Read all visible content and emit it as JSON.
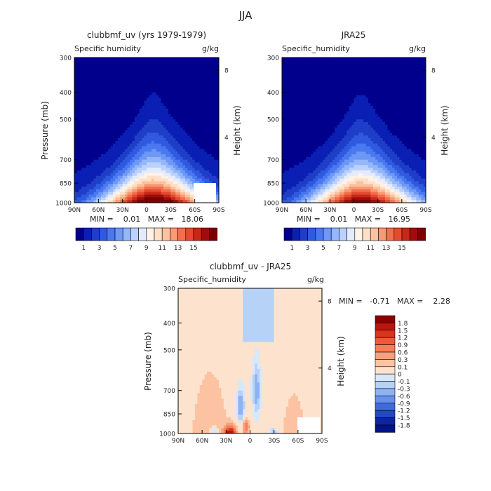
{
  "figure": {
    "title": "JJA"
  },
  "chart_data": [
    {
      "type": "heatmap",
      "title": "clubbmf_uv (yrs 1979-1979)",
      "subtitle_left": "Specific humidity",
      "subtitle_right": "g/kg",
      "ylabel": "Pressure (mb)",
      "y2label": "Height (km)",
      "x_ticks": [
        "90N",
        "60N",
        "30N",
        "0",
        "30S",
        "60S",
        "90S"
      ],
      "y_ticks": [
        "300",
        "400",
        "500",
        "700",
        "850",
        "1000"
      ],
      "y2_ticks": [
        "8",
        "4"
      ],
      "xlim": [
        90,
        -90
      ],
      "ylim": [
        1000,
        300
      ],
      "stats": "MIN =    0.01   MAX =   18.06",
      "colorbar_labels": [
        "1",
        "3",
        "5",
        "7",
        "9",
        "11",
        "13",
        "15"
      ],
      "colors": [
        "#00008c",
        "#0a1fb4",
        "#1f3ec8",
        "#2f5ae0",
        "#4a78f0",
        "#6d98f6",
        "#94b6fa",
        "#bcd2fc",
        "#e2ecfe",
        "#fff2e6",
        "#fde0c6",
        "#fbc2a0",
        "#f89a74",
        "#f0704c",
        "#e34a30",
        "#c82818",
        "#9e0c0c",
        "#7d0000"
      ],
      "levels": [
        1,
        2,
        3,
        4,
        5,
        6,
        7,
        8,
        9,
        10,
        11,
        12,
        13,
        14,
        15,
        16,
        17
      ]
    },
    {
      "type": "heatmap",
      "title": "JRA25",
      "subtitle_left": "Specific_humidity",
      "subtitle_right": "g/kg",
      "ylabel": "",
      "y2label": "Height (km)",
      "x_ticks": [
        "90N",
        "60N",
        "30N",
        "0",
        "30S",
        "60S",
        "90S"
      ],
      "y_ticks": [
        "300",
        "400",
        "500",
        "700",
        "850",
        "1000"
      ],
      "y2_ticks": [
        "8",
        "4"
      ],
      "xlim": [
        90,
        -90
      ],
      "ylim": [
        1000,
        300
      ],
      "stats": "MIN =    0.01   MAX =   16.95",
      "colorbar_labels": [
        "1",
        "3",
        "5",
        "7",
        "9",
        "11",
        "13",
        "15"
      ]
    },
    {
      "type": "heatmap",
      "title": "clubbmf_uv - JRA25",
      "subtitle_left": "Specific_humidity",
      "subtitle_right": "g/kg",
      "ylabel": "Pressure (mb)",
      "y2label": "Height (km)",
      "x_ticks": [
        "90N",
        "60N",
        "30N",
        "0",
        "30S",
        "60S",
        "90S"
      ],
      "y_ticks": [
        "300",
        "400",
        "500",
        "700",
        "850",
        "1000"
      ],
      "y2_ticks": [
        "8",
        "4"
      ],
      "xlim": [
        90,
        -90
      ],
      "ylim": [
        1000,
        300
      ],
      "stats": "MIN =   -0.71   MAX =    2.28",
      "colorbar_labels": [
        "1.8",
        "1.5",
        "1.2",
        "0.9",
        "0.6",
        "0.3",
        "0.1",
        "0",
        "-0.1",
        "-0.3",
        "-0.6",
        "-0.9",
        "-1.2",
        "-1.5",
        "-1.8"
      ],
      "colors": [
        "#8b0000",
        "#b8160f",
        "#d8341e",
        "#ef5a36",
        "#f67e56",
        "#f9a07a",
        "#fcc3a3",
        "#fde3ce",
        "#d6e8fb",
        "#b7d2f7",
        "#8fb2f2",
        "#6690ea",
        "#3e6ade",
        "#2448c2",
        "#0c26a2",
        "#00138a"
      ]
    }
  ]
}
